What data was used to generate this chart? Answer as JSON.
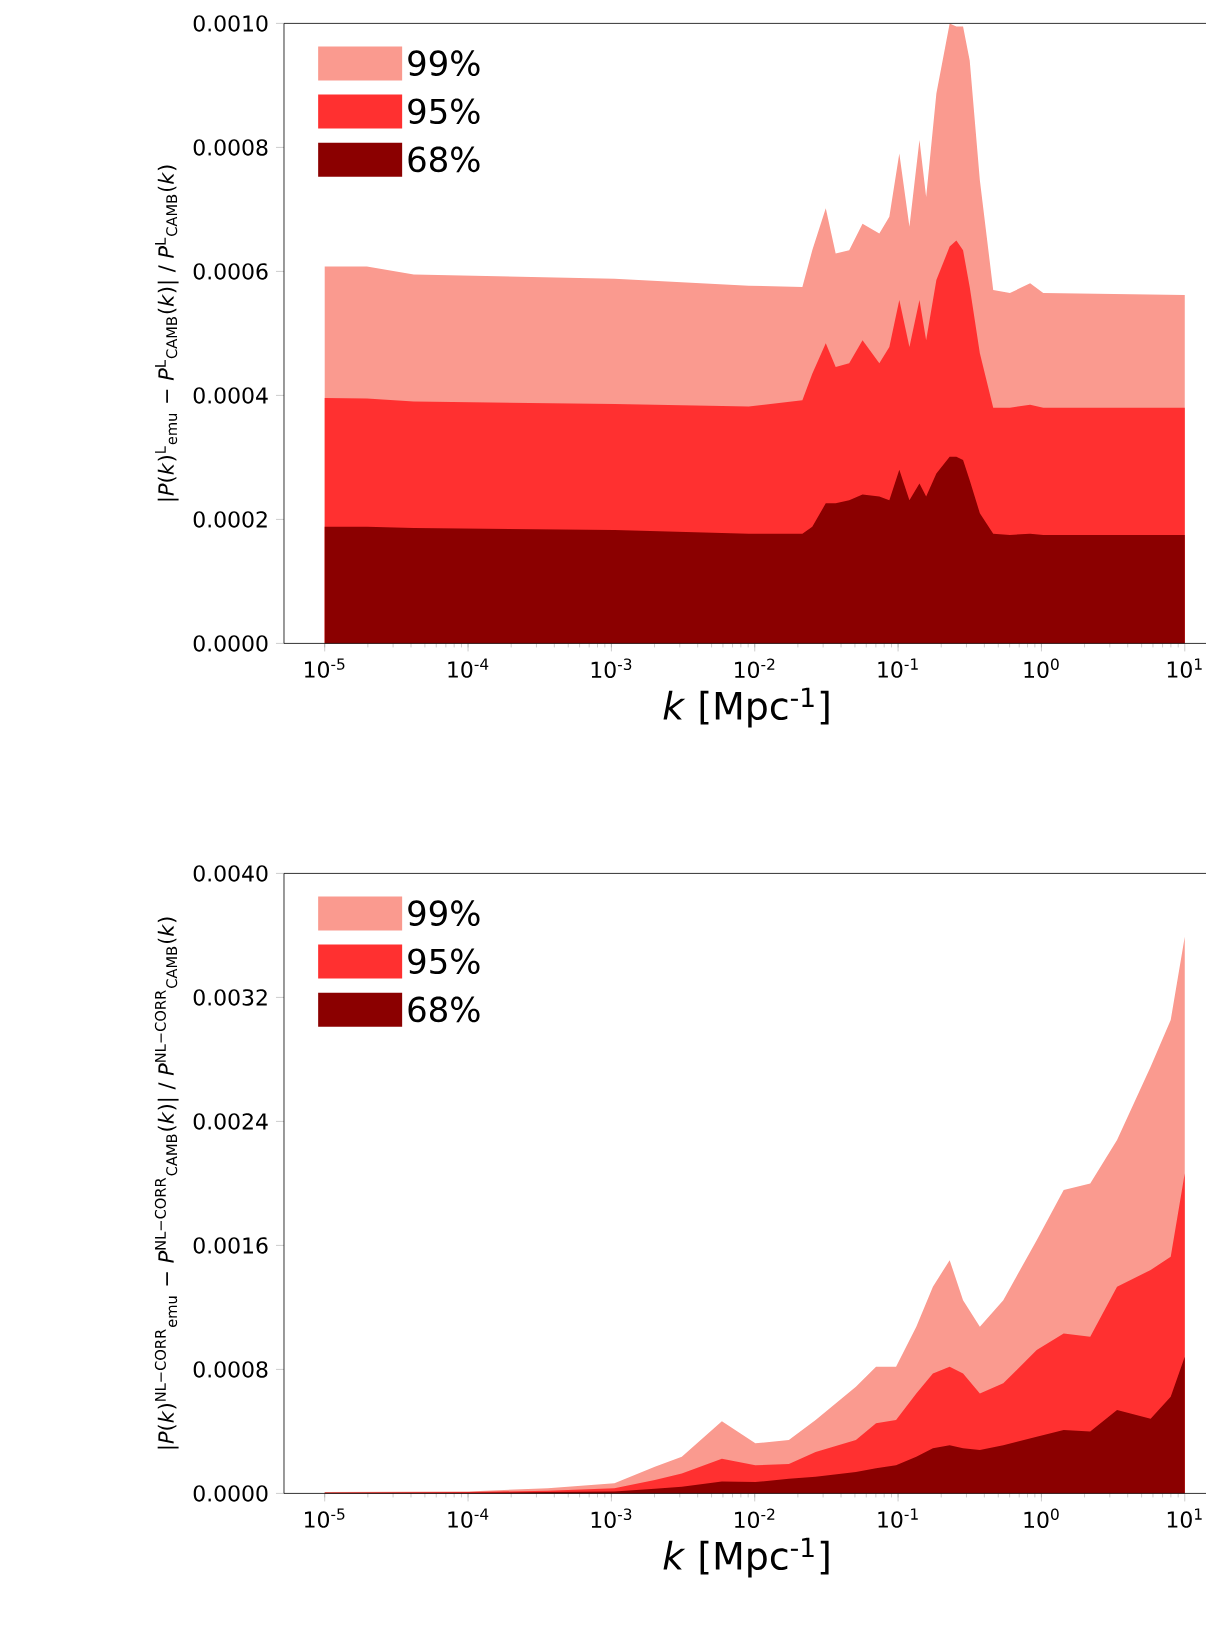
{
  "chart_data": [
    {
      "type": "area",
      "xlabel": "*k* [Mpc$^{-1}$]",
      "ylabel": "|*P*(*k*)$^{L}$$_{emu}$ − *P*$^{L}$$_{CAMB}$(*k*)| / *P*$^{L}$$_{CAMB}$(*k*)",
      "log": "x",
      "legend": "top left",
      "grid": false,
      "xlim": [
        5.2e-06,
        15
      ],
      "ylim": [
        0,
        0.001
      ],
      "xticks": [
        {
          "value": 1e-05,
          "label": "10$^{-5}$"
        },
        {
          "value": 0.0001,
          "label": "10$^{-4}$"
        },
        {
          "value": 0.001,
          "label": "10$^{-3}$"
        },
        {
          "value": 0.01,
          "label": "10$^{-2}$"
        },
        {
          "value": 0.1,
          "label": "10$^{-1}$"
        },
        {
          "value": 1,
          "label": "10$^{0}$"
        },
        {
          "value": 10,
          "label": "10$^{1}$"
        }
      ],
      "yticks": [
        {
          "value": 0,
          "label": "0.0000"
        },
        {
          "value": 0.0002,
          "label": "0.0002"
        },
        {
          "value": 0.0004,
          "label": "0.0004"
        },
        {
          "value": 0.0006,
          "label": "0.0006"
        },
        {
          "value": 0.0008,
          "label": "0.0008"
        },
        {
          "value": 0.001,
          "label": "0.0010"
        }
      ],
      "x": [
        1e-05,
        1.97e-05,
        4.18e-05,
        0.00105,
        0.00908,
        0.0215,
        0.0252,
        0.0313,
        0.0367,
        0.0456,
        0.0565,
        0.074,
        0.0869,
        0.102,
        0.12,
        0.141,
        0.157,
        0.185,
        0.229,
        0.255,
        0.284,
        0.316,
        0.372,
        0.461,
        0.603,
        0.834,
        1.03,
        10
      ],
      "series": [
        {
          "name": "99%",
          "color": "#fa9a8f",
          "values": [
            0.000608,
            0.000608,
            0.000595,
            0.000588,
            0.000577,
            0.000575,
            0.000634,
            0.000702,
            0.000629,
            0.000634,
            0.000677,
            0.000661,
            0.000688,
            0.00079,
            0.000672,
            0.000812,
            0.00072,
            0.000887,
            0.001,
            0.000995,
            0.000995,
            0.00094,
            0.000747,
            0.00057,
            0.000565,
            0.000581,
            0.000565,
            0.000562
          ]
        },
        {
          "name": "95%",
          "color": "#ff3030",
          "values": [
            0.000396,
            0.000395,
            0.00039,
            0.000386,
            0.000382,
            0.000392,
            0.000435,
            0.000484,
            0.000446,
            0.000452,
            0.000489,
            0.000452,
            0.000478,
            0.000554,
            0.000478,
            0.000554,
            0.000489,
            0.000586,
            0.00064,
            0.00065,
            0.000634,
            0.000575,
            0.000468,
            0.00038,
            0.00038,
            0.000385,
            0.00038,
            0.00038
          ]
        },
        {
          "name": "68%",
          "color": "#8b0000",
          "values": [
            0.000188,
            0.000188,
            0.000186,
            0.000183,
            0.000177,
            0.000177,
            0.000188,
            0.000226,
            0.000226,
            0.000231,
            0.00024,
            0.000237,
            0.000231,
            0.00028,
            0.000231,
            0.000258,
            0.000237,
            0.000274,
            0.000301,
            0.000301,
            0.000296,
            0.000263,
            0.00021,
            0.000177,
            0.000175,
            0.000177,
            0.000175,
            0.000175
          ]
        }
      ]
    },
    {
      "type": "area",
      "xlabel": "*k* [Mpc$^{-1}$]",
      "ylabel": "|*P*(*k*)$^{NL−CORR}$$_{emu}$ − *P*$^{NL−CORR}$$_{CAMB}$(*k*)| / *P*$^{NL−CORR}$$_{CAMB}$(*k*)",
      "log": "x",
      "legend": "top left",
      "grid": false,
      "xlim": [
        5.2e-06,
        15
      ],
      "ylim": [
        0,
        0.004
      ],
      "xticks": [
        {
          "value": 1e-05,
          "label": "10$^{-5}$"
        },
        {
          "value": 0.0001,
          "label": "10$^{-4}$"
        },
        {
          "value": 0.001,
          "label": "10$^{-3}$"
        },
        {
          "value": 0.01,
          "label": "10$^{-2}$"
        },
        {
          "value": 0.1,
          "label": "10$^{-1}$"
        },
        {
          "value": 1,
          "label": "10$^{0}$"
        },
        {
          "value": 10,
          "label": "10$^{1}$"
        }
      ],
      "yticks": [
        {
          "value": 0,
          "label": "0.0000"
        },
        {
          "value": 0.0008,
          "label": "0.0008"
        },
        {
          "value": 0.0016,
          "label": "0.0016"
        },
        {
          "value": 0.0024,
          "label": "0.0024"
        },
        {
          "value": 0.0032,
          "label": "0.0032"
        },
        {
          "value": 0.004,
          "label": "0.0040"
        }
      ],
      "x": [
        1e-05,
        0.0001,
        0.00036,
        0.00105,
        0.00201,
        0.0031,
        0.0059,
        0.0101,
        0.0173,
        0.0266,
        0.0508,
        0.0702,
        0.0968,
        0.134,
        0.175,
        0.229,
        0.284,
        0.372,
        0.542,
        0.927,
        1.43,
        2.19,
        3.37,
        5.78,
        7.98,
        10
      ],
      "series": [
        {
          "name": "99%",
          "color": "#fa9a8f",
          "values": [
            8.6e-06,
            1.3e-05,
            3.4e-05,
            6.5e-05,
            0.000172,
            0.000237,
            0.000465,
            0.000323,
            0.000344,
            0.000473,
            0.000688,
            0.000817,
            0.000817,
            0.001075,
            0.001333,
            0.001505,
            0.001247,
            0.001075,
            0.001247,
            0.001634,
            0.001957,
            0.002,
            0.00228,
            0.002753,
            0.003054,
            0.003591
          ]
        },
        {
          "name": "95%",
          "color": "#ff3030",
          "values": [
            4e-06,
            9e-06,
            1.7e-05,
            3.4e-05,
            8.6e-05,
            0.000129,
            0.000224,
            0.000181,
            0.000189,
            0.000267,
            0.000344,
            0.000452,
            0.000473,
            0.000645,
            0.000774,
            0.000817,
            0.000774,
            0.000645,
            0.00071,
            0.000925,
            0.001032,
            0.001011,
            0.001333,
            0.001441,
            0.001527,
            0.002065
          ]
        },
        {
          "name": "68%",
          "color": "#8b0000",
          "values": [
            4e-06,
            4e-06,
            9e-06,
            1.3e-05,
            3e-05,
            4.3e-05,
            7.7e-05,
            7.3e-05,
            9.5e-05,
            0.000108,
            0.000138,
            0.000163,
            0.000181,
            0.000237,
            0.000292,
            0.00031,
            0.000292,
            0.00028,
            0.00031,
            0.000366,
            0.000409,
            0.0004,
            0.000538,
            0.000482,
            0.000624,
            0.000882
          ]
        }
      ]
    }
  ]
}
